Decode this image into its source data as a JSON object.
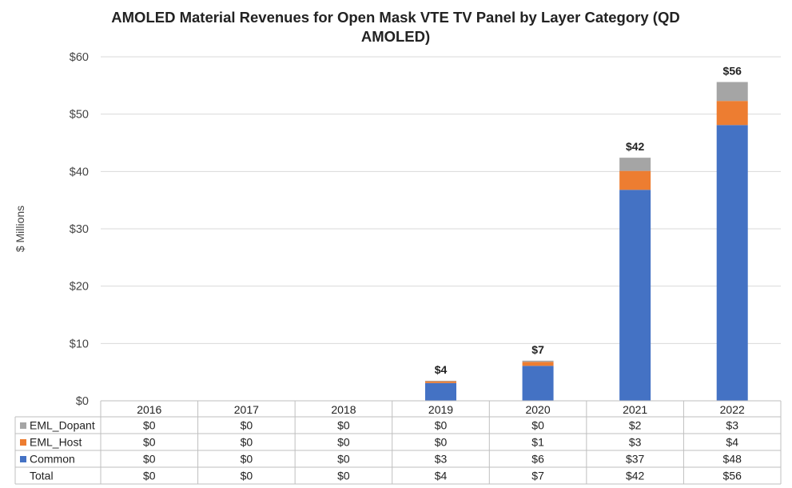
{
  "chart_data": {
    "type": "bar",
    "stacked": true,
    "title_lines": [
      "AMOLED Material Revenues for Open Mask VTE TV Panel by Layer Category (QD",
      "AMOLED)"
    ],
    "ylabel": "$ Millions",
    "ylim": [
      0,
      60
    ],
    "yticks": [
      "$0",
      "$10",
      "$20",
      "$30",
      "$40",
      "$50",
      "$60"
    ],
    "categories": [
      "2016",
      "2017",
      "2018",
      "2019",
      "2020",
      "2021",
      "2022"
    ],
    "series": [
      {
        "name": "Common",
        "color": "#4472C4",
        "values": [
          0,
          0,
          0,
          3.1,
          6.1,
          36.8,
          48.1
        ],
        "labels": [
          "$0",
          "$0",
          "$0",
          "$3",
          "$6",
          "$37",
          "$48"
        ]
      },
      {
        "name": "EML_Host",
        "color": "#ED7D31",
        "values": [
          0,
          0,
          0,
          0.3,
          0.7,
          3.3,
          4.2
        ],
        "labels": [
          "$0",
          "$0",
          "$0",
          "$0",
          "$1",
          "$3",
          "$4"
        ]
      },
      {
        "name": "EML_Dopant",
        "color": "#A5A5A5",
        "values": [
          0,
          0,
          0,
          0.1,
          0.2,
          2.3,
          3.3
        ],
        "labels": [
          "$0",
          "$0",
          "$0",
          "$0",
          "$0",
          "$2",
          "$3"
        ]
      }
    ],
    "totals": [
      0,
      0,
      0,
      3.5,
      7.0,
      42.4,
      55.6
    ],
    "total_bar_labels": [
      "",
      "",
      "",
      "$4",
      "$7",
      "$42",
      "$56"
    ],
    "table_row_order": [
      "EML_Dopant",
      "EML_Host",
      "Common",
      "Total"
    ],
    "total_row_name": "Total",
    "total_row_labels": [
      "$0",
      "$0",
      "$0",
      "$4",
      "$7",
      "$42",
      "$56"
    ],
    "grid": true,
    "legend": "data-table"
  }
}
